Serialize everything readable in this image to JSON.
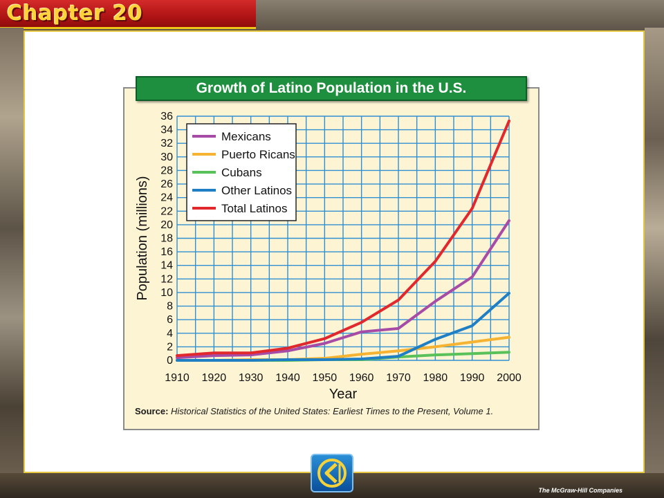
{
  "header": {
    "chapter_title": "Chapter 20"
  },
  "footer": {
    "publisher": "The McGraw-Hill Companies"
  },
  "navigation": {
    "back_icon": "back-arrow-icon"
  },
  "source": {
    "label": "Source:",
    "text": "Historical Statistics of the United States: Earliest Times to the Present, Volume 1."
  },
  "chart_data": {
    "type": "line",
    "title": "Growth of Latino Population in the U.S.",
    "xlabel": "Year",
    "ylabel": "Population (millions)",
    "x": [
      1910,
      1920,
      1930,
      1940,
      1950,
      1960,
      1970,
      1980,
      1990,
      2000
    ],
    "xlim": [
      1910,
      2000
    ],
    "ylim": [
      0,
      36
    ],
    "yticks": [
      0,
      2,
      4,
      6,
      8,
      10,
      12,
      14,
      16,
      18,
      20,
      22,
      24,
      26,
      28,
      30,
      32,
      34,
      36
    ],
    "grid": true,
    "legend_position": "top-left",
    "series": [
      {
        "name": "Mexicans",
        "color": "#a64ca6",
        "values": [
          0.4,
          0.7,
          0.8,
          1.4,
          2.5,
          4.2,
          4.7,
          8.7,
          12.3,
          20.6
        ]
      },
      {
        "name": "Puerto Ricans",
        "color": "#f5b331",
        "values": [
          0.0,
          0.0,
          0.1,
          0.1,
          0.3,
          0.9,
          1.4,
          2.0,
          2.7,
          3.4
        ]
      },
      {
        "name": "Cubans",
        "color": "#59c15a",
        "values": [
          0.0,
          0.0,
          0.0,
          0.0,
          0.1,
          0.1,
          0.5,
          0.8,
          1.0,
          1.2
        ]
      },
      {
        "name": "Other Latinos",
        "color": "#1f7fc4",
        "values": [
          0.0,
          0.0,
          0.0,
          0.1,
          0.1,
          0.2,
          0.6,
          3.1,
          5.1,
          9.9
        ]
      },
      {
        "name": "Total Latinos",
        "color": "#e0282d",
        "values": [
          0.7,
          1.1,
          1.1,
          1.8,
          3.2,
          5.6,
          8.9,
          14.6,
          22.4,
          35.3
        ]
      }
    ]
  }
}
